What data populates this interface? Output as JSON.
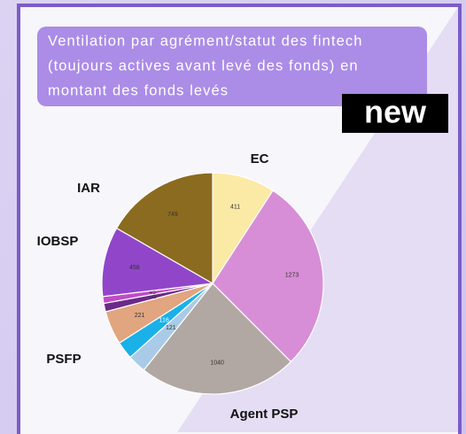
{
  "badge": "new",
  "chart_data": {
    "type": "pie",
    "title": [
      "Ventilation par agrément/statut des fintech",
      "(toujours actives avant levé des fonds) en",
      "montant des fonds levés"
    ],
    "categories": [
      "EC",
      null,
      "Agent PSP",
      null,
      "PSFP",
      null,
      null,
      null,
      "IOBSP",
      "IAR"
    ],
    "values": [
      411,
      1273,
      1040,
      121,
      116,
      221,
      55,
      45,
      458,
      749
    ],
    "colors": [
      "#fbe9a6",
      "#d78ed6",
      "#b1a8a3",
      "#a9cbe8",
      "#1ab1e8",
      "#e1a57f",
      "#6a2a8a",
      "#c04bc8",
      "#9146c9",
      "#8b6b1f"
    ]
  }
}
